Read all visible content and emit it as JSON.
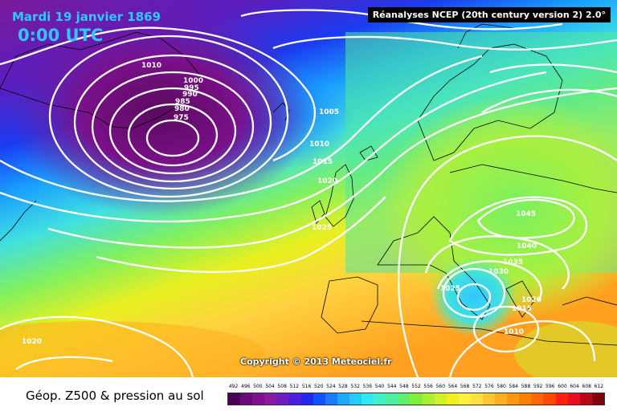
{
  "header": {
    "date_title": "Mardi 19 janvier 1869",
    "time_title": "0:00 UTC",
    "source": "Réanalyses NCEP (20th century version 2) 2.0°"
  },
  "copyright": "Copyright © 2013 Meteociel.fr",
  "footer_title": "Géop. Z500 & pression au sol",
  "pressure_labels": [
    "1010",
    "1000",
    "995",
    "990",
    "985",
    "980",
    "975",
    "1005",
    "1010",
    "1015",
    "1020",
    "1025",
    "1045",
    "1040",
    "1035",
    "1030",
    "1025",
    "1020",
    "1015",
    "1010",
    "1020"
  ],
  "legend": {
    "values": [
      "492",
      "496",
      "500",
      "504",
      "508",
      "512",
      "516",
      "520",
      "524",
      "528",
      "532",
      "536",
      "540",
      "544",
      "548",
      "552",
      "556",
      "560",
      "564",
      "568",
      "572",
      "576",
      "580",
      "584",
      "588",
      "592",
      "596",
      "600",
      "604",
      "608",
      "612"
    ],
    "colors": [
      "#4a0056",
      "#6a0a7a",
      "#80108c",
      "#8a1aa0",
      "#6e1cc0",
      "#4a1ee0",
      "#2228f0",
      "#1450ff",
      "#1c7aff",
      "#1ea8ff",
      "#22ccff",
      "#30e8f0",
      "#40f0c8",
      "#4cf0a0",
      "#60f070",
      "#80f040",
      "#a8f030",
      "#d0f028",
      "#f0f020",
      "#fff040",
      "#ffe040",
      "#ffc830",
      "#ffb020",
      "#ff9810",
      "#ff8000",
      "#ff6800",
      "#ff4800",
      "#ff2010",
      "#e81020",
      "#b80818",
      "#800010"
    ]
  }
}
